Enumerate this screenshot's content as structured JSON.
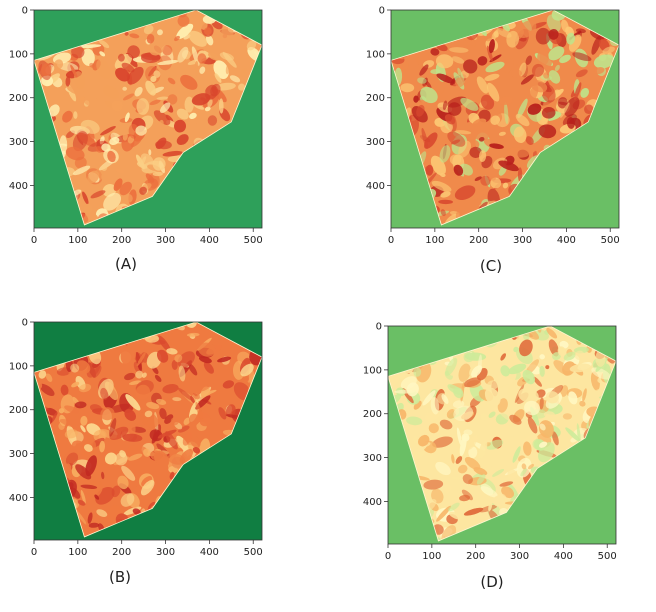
{
  "panels": [
    {
      "id": "A",
      "caption": "(A)",
      "bg_color": "#2ea05a",
      "palette": [
        "#d8442c",
        "#ec6e3d",
        "#f4a05a",
        "#fbcf85",
        "#fff0b2"
      ],
      "x_ticks": [
        "0",
        "100",
        "200",
        "300",
        "400",
        "500"
      ],
      "y_ticks": [
        "0",
        "100",
        "200",
        "300",
        "400"
      ]
    },
    {
      "id": "C",
      "caption": "(C)",
      "bg_color": "#6abf65",
      "palette": [
        "#b8201c",
        "#d94a2f",
        "#f08a4b",
        "#fcc874",
        "#bfe38a"
      ],
      "x_ticks": [
        "0",
        "100",
        "200",
        "300",
        "400",
        "500"
      ],
      "y_ticks": [
        "0",
        "100",
        "200",
        "300",
        "400"
      ]
    },
    {
      "id": "B",
      "caption": "(B)",
      "bg_color": "#107e42",
      "palette": [
        "#c22a22",
        "#da4a2e",
        "#ef7a40",
        "#f8ad60",
        "#fcd88e"
      ],
      "x_ticks": [
        "0",
        "100",
        "200",
        "300",
        "400",
        "500"
      ],
      "y_ticks": [
        "0",
        "100",
        "200",
        "300",
        "400"
      ]
    },
    {
      "id": "D",
      "caption": "(D)",
      "bg_color": "#6abf65",
      "palette": [
        "#e06a3a",
        "#f7b568",
        "#fde6a0",
        "#fff7c2",
        "#cdeb9a"
      ],
      "x_ticks": [
        "0",
        "100",
        "200",
        "300",
        "400",
        "500"
      ],
      "y_ticks": [
        "0",
        "100",
        "200",
        "300",
        "400"
      ]
    }
  ]
}
